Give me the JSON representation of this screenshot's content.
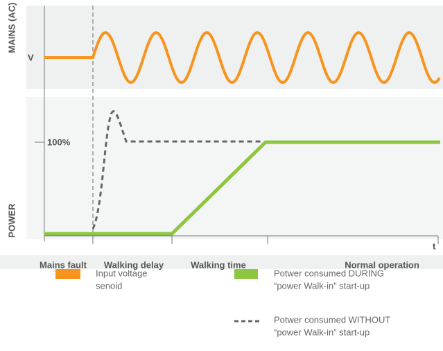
{
  "axes": {
    "top_label": "MAINS (AC)",
    "bottom_label": "POWER",
    "v_label": "V",
    "percent_label": "100%",
    "time_label": "t"
  },
  "phases": [
    "Mains fault",
    "Walking delay",
    "Walking time",
    "Normal operation"
  ],
  "legend": [
    {
      "lines": [
        "Input voltage",
        "senoid"
      ]
    },
    {
      "lines": [
        "Potwer consumed DURING",
        "“power Walk-in” start-up"
      ]
    },
    {
      "lines": [
        "Potwer consumed WITHOUT",
        "“power Walk-in” start-up"
      ]
    }
  ]
}
